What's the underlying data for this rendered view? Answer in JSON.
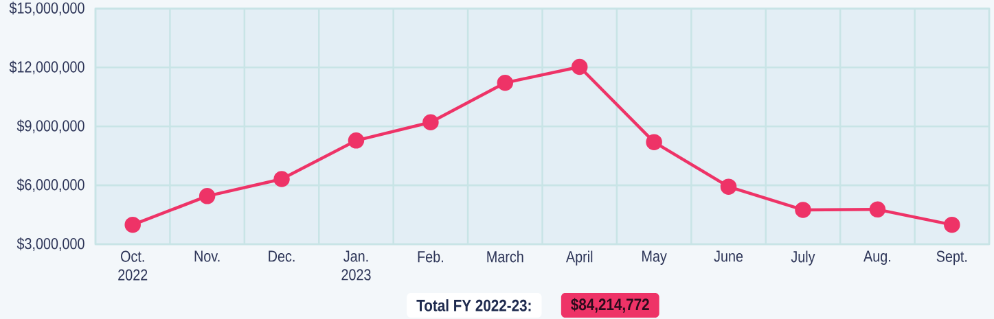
{
  "chart_data": {
    "type": "line",
    "categories": [
      "Oct. 2022",
      "Nov.",
      "Dec.",
      "Jan. 2023",
      "Feb.",
      "March",
      "April",
      "May",
      "June",
      "July",
      "Aug.",
      "Sept."
    ],
    "series": [
      {
        "color": "#ee3367",
        "values": [
          3990000,
          5450000,
          6320000,
          8280000,
          9210000,
          11220000,
          12030000,
          8200000,
          5930000,
          4750000,
          4770000,
          3990000
        ]
      }
    ],
    "ylim": [
      3000000,
      15000000
    ],
    "yticks": [
      {
        "value": 3000000,
        "label": "$3,000,000"
      },
      {
        "value": 6000000,
        "label": "$6,000,000"
      },
      {
        "value": 9000000,
        "label": "$9,000,000"
      },
      {
        "value": 12000000,
        "label": "$12,000,000"
      },
      {
        "value": 15000000,
        "label": "$15,000,000"
      }
    ],
    "grid": true,
    "marker": "circle",
    "line_style": "solid",
    "annotations": [
      "Total FY 2022-23:",
      "$84,214,772"
    ]
  }
}
